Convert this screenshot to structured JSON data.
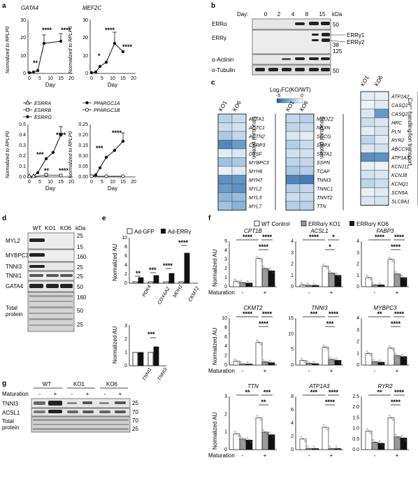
{
  "panel_labels": {
    "a": "a",
    "b": "b",
    "c": "c",
    "d": "d",
    "e": "e",
    "f": "f",
    "g": "g"
  },
  "panel_a": {
    "ylabel": "Normalized to RPLP0",
    "xlabel": "Day",
    "x_ticks": [
      "0",
      "5",
      "10",
      "15",
      "20"
    ],
    "plots": [
      {
        "title": "GATA4",
        "y_ticks": [
          "0",
          "10",
          "20",
          "30"
        ],
        "stars": [
          "**",
          "****",
          "****"
        ]
      },
      {
        "title": "MEF2C",
        "y_ticks": [
          "0",
          "10",
          "20",
          "30"
        ],
        "stars": [
          "*",
          "****",
          "****"
        ]
      },
      {
        "title": "",
        "legend": [
          "ESRRA",
          "ESRRB",
          "ESRRG"
        ],
        "y_ticks": [
          "0.0",
          "0.1",
          "0.2",
          "0.3",
          "0.4",
          "0.5"
        ],
        "stars": [
          "***",
          "****",
          "**",
          "****"
        ]
      },
      {
        "title": "",
        "legend": [
          "PPARGC1A",
          "PPARGC1B"
        ],
        "y_ticks": [
          "0.00",
          "0.05",
          "0.10",
          "0.15",
          "0.20",
          "0.25"
        ],
        "stars": [
          "***",
          "****"
        ]
      }
    ]
  },
  "panel_b": {
    "day_label": "Day:",
    "days": [
      "0",
      "2",
      "4",
      "8",
      "15"
    ],
    "kda": "kDa",
    "rows": [
      "ERRα",
      "ERRγ",
      "α-Actinin",
      "α-Tubulin"
    ],
    "markers": [
      "50",
      "38",
      "125",
      "50"
    ],
    "band_labels": [
      "ERRγ1",
      "ERRγ2"
    ]
  },
  "panel_c": {
    "legend_title": "Log₂FC(KO/WT)",
    "legend_min": "-5",
    "legend_max": "0",
    "cols": [
      "KO1",
      "KO6"
    ],
    "groups": [
      {
        "genes": [
          "ACTA1",
          "ACTC1",
          "ACTN2",
          "CSRP3",
          "DYSF",
          "MYBPC3",
          "MYH6",
          "MYH7",
          "MYL2",
          "MYL3",
          "MYL7"
        ],
        "side_label": "Structural protein"
      },
      {
        "genes": [
          "MYOZ2",
          "NEXN",
          "SGCG",
          "SMPX",
          "SNTA1",
          "SSPN",
          "TCAP",
          "TNNI3",
          "TNNC1",
          "TNNT2",
          "TTN"
        ],
        "side_label": "Structural protein"
      },
      {
        "genes": [
          "ATP2A2",
          "CASQ1",
          "CASQ2",
          "HRC",
          "PLN",
          "RYR2",
          "ABCC9",
          "ATP1A3",
          "KCNJ11",
          "KCNJ8",
          "KCNQ1",
          "SCN5A",
          "SLC8A1"
        ],
        "side_label": "Ca²⁺ handling/Ion transport"
      }
    ],
    "values": [
      [
        [
          -1.5,
          -1.2
        ],
        [
          -1.2,
          -1.0
        ],
        [
          -1.8,
          -1.3
        ],
        [
          -3.8,
          -3.2
        ],
        [
          -0.6,
          -0.8
        ],
        [
          -2.0,
          -1.8
        ],
        [
          -0.5,
          -0.7
        ],
        [
          -3.5,
          -3.4
        ],
        [
          -3.2,
          -3.5
        ],
        [
          -2.4,
          -2.2
        ],
        [
          -2.0,
          -2.5
        ]
      ],
      [
        [
          -1.3,
          -1.5
        ],
        [
          -1.4,
          -1.2
        ],
        [
          -0.8,
          -0.6
        ],
        [
          -1.6,
          -1.2
        ],
        [
          -1.0,
          -1.0
        ],
        [
          -1.4,
          -1.3
        ],
        [
          -1.8,
          -1.6
        ],
        [
          -3.9,
          -4.1
        ],
        [
          -1.6,
          -1.3
        ],
        [
          -1.1,
          -1.2
        ],
        [
          -1.6,
          -1.5
        ]
      ],
      [
        [
          -0.6,
          -0.5
        ],
        [
          -0.4,
          -0.7
        ],
        [
          -0.8,
          -3.3
        ],
        [
          -1.1,
          -0.8
        ],
        [
          -0.6,
          -0.9
        ],
        [
          -1.4,
          -0.7
        ],
        [
          -0.8,
          -1.0
        ],
        [
          -3.6,
          -3.5
        ],
        [
          -0.5,
          -0.4
        ],
        [
          -1.0,
          -0.8
        ],
        [
          -1.4,
          -1.1
        ],
        [
          -0.5,
          -0.7
        ],
        [
          -0.8,
          -0.9
        ]
      ]
    ]
  },
  "panel_d": {
    "lanes": [
      "WT",
      "KO1",
      "KO6"
    ],
    "kda": "kDa",
    "rows": [
      "MYL2",
      "MYBPC3",
      "TNNI3",
      "TNNI1",
      "GATA4",
      "Total protein"
    ],
    "markers": [
      "25",
      "15",
      "160",
      "25",
      "25",
      "50",
      "160",
      "50",
      "25"
    ]
  },
  "panel_e": {
    "legend": [
      "Ad-GFP",
      "Ad-ERRγ"
    ],
    "ylabel": "Normalized AU",
    "top": {
      "y_ticks": [
        "0",
        "2",
        "4",
        "6",
        "8",
        "10"
      ],
      "categories": [
        "PDK4",
        "COX6A2",
        "MDH1",
        "CKMT2"
      ],
      "stars": [
        "**",
        "***",
        "****",
        "****"
      ]
    },
    "bottom": {
      "y_ticks": [
        "0",
        "1",
        "2",
        "3"
      ],
      "categories": [
        "TNNI1",
        "TNNI3"
      ],
      "stars": [
        "***"
      ]
    }
  },
  "panel_f": {
    "legend": [
      "WT Control",
      "ERRα/γ KO1",
      "ERRα/γ KO6"
    ],
    "ylabel": "Normalized AU",
    "maturation_label": "Maturation",
    "minus": "-",
    "plus": "+",
    "plots": [
      {
        "title": "CPT1B",
        "y_ticks": [
          "0",
          "1",
          "2",
          "3",
          "4",
          "5"
        ],
        "stars": [
          "****",
          "****",
          "****"
        ]
      },
      {
        "title": "ACSL1",
        "y_ticks": [
          "0",
          "1",
          "2",
          "3",
          "4"
        ],
        "stars": [
          "****",
          "*",
          "*"
        ]
      },
      {
        "title": "FABP3",
        "y_ticks": [
          "0",
          "1",
          "2",
          "3",
          "4"
        ],
        "stars": [
          "****",
          "****",
          "****"
        ]
      },
      {
        "title": "CKMT2",
        "y_ticks": [
          "0",
          "2",
          "4",
          "6",
          "8",
          "10"
        ],
        "stars": [
          "****",
          "****",
          "****"
        ]
      },
      {
        "title": "TNNI3",
        "y_ticks": [
          "0",
          "5",
          "10",
          "15"
        ],
        "stars": [
          "***",
          "****",
          "***"
        ]
      },
      {
        "title": "MYBPC3",
        "y_ticks": [
          "0",
          "1",
          "2",
          "3",
          "4"
        ],
        "stars": [
          "**",
          "****",
          "****"
        ]
      },
      {
        "title": "TTN",
        "y_ticks": [
          "0",
          "1",
          "2",
          "3"
        ],
        "stars": [
          "**",
          "***",
          "**"
        ]
      },
      {
        "title": "ATP1A3",
        "y_ticks": [
          "0",
          "2",
          "4",
          "6",
          "8"
        ],
        "stars": [
          "***",
          "****",
          "****"
        ]
      },
      {
        "title": "RYR2",
        "y_ticks": [
          "0.0",
          "0.5",
          "1.0",
          "1.5",
          "2.0",
          "2.5"
        ],
        "stars": [
          "**",
          "****",
          "****"
        ]
      }
    ]
  },
  "panel_g": {
    "groups": [
      "WT",
      "KO1",
      "KO6"
    ],
    "maturation_label": "Maturation",
    "signs": [
      "-",
      "+",
      "-",
      "+",
      "-",
      "+"
    ],
    "rows": [
      "TNNI3",
      "ACSL1",
      "Total protein"
    ],
    "markers": [
      "25",
      "70",
      "70",
      "25"
    ]
  },
  "colors": {
    "black": "#111111",
    "grey": "#9a9a9a",
    "white": "#ffffff",
    "heat_low": "#1f5fa0",
    "heat_high": "#ffffff"
  }
}
